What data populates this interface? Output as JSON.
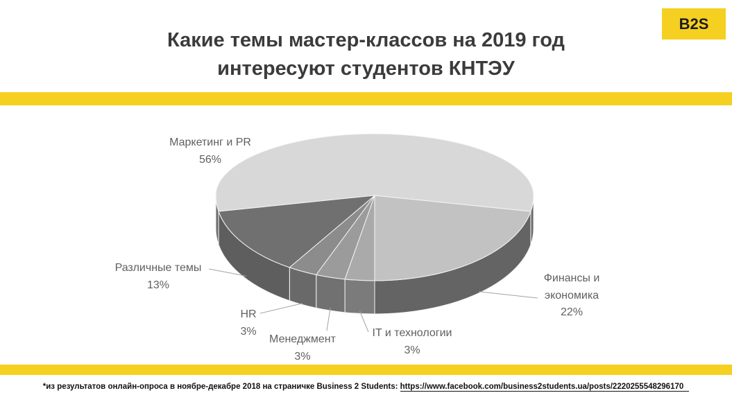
{
  "slide": {
    "title_line1": "Какие темы мастер-классов на 2019 год",
    "title_line2": "интересуют студентов КНТЭУ",
    "badge": "B2S",
    "accent_color": "#F5D021",
    "footnote_text": "*из результатов онлайн-опроса в ноябре-декабре 2018 на страничке Business 2 Students:",
    "footnote_link": "https://www.facebook.com/business2students.ua/posts/2220255548296170"
  },
  "chart_data": {
    "type": "pie",
    "style": "3d",
    "title": "Какие темы мастер-классов на 2019 год интересуют студентов КНТЭУ",
    "unit": "%",
    "legend": "none",
    "labels_on": "outside-with-leader-lines",
    "categories": [
      "Маркетинг и PR",
      "Финансы и экономика",
      "IT и технологии",
      "Менеджмент",
      "HR",
      "Различные темы"
    ],
    "values": [
      56,
      22,
      3,
      3,
      3,
      13
    ],
    "start_angle_deg": 190.8,
    "clockwise": true,
    "label_color": "#5f5f5f",
    "separator_color": "#f5f5f5",
    "leader_color": "#a3a3a3",
    "slices": [
      {
        "label": "Маркетинг и PR",
        "label_lines": [
          "Маркетинг и PR"
        ],
        "value": 56,
        "pct_label": "56%",
        "top_color": "#d8d8d8",
        "side_color": "#6b6b6b"
      },
      {
        "label": "Финансы и экономика",
        "label_lines": [
          "Финансы и",
          "экономика"
        ],
        "value": 22,
        "pct_label": "22%",
        "top_color": "#c2c2c2",
        "side_color": "#646464"
      },
      {
        "label": "IT и технологии",
        "label_lines": [
          "IT и технологии"
        ],
        "value": 3,
        "pct_label": "3%",
        "top_color": "#aaaaaa",
        "side_color": "#7b7b7b"
      },
      {
        "label": "Менеджмент",
        "label_lines": [
          "Менеджмент"
        ],
        "value": 3,
        "pct_label": "3%",
        "top_color": "#9b9b9b",
        "side_color": "#717171"
      },
      {
        "label": "HR",
        "label_lines": [
          "HR"
        ],
        "value": 3,
        "pct_label": "3%",
        "top_color": "#8c8c8c",
        "side_color": "#696969"
      },
      {
        "label": "Различные темы",
        "label_lines": [
          "Различные темы"
        ],
        "value": 13,
        "pct_label": "13%",
        "top_color": "#707070",
        "side_color": "#5e5e5e"
      }
    ]
  }
}
